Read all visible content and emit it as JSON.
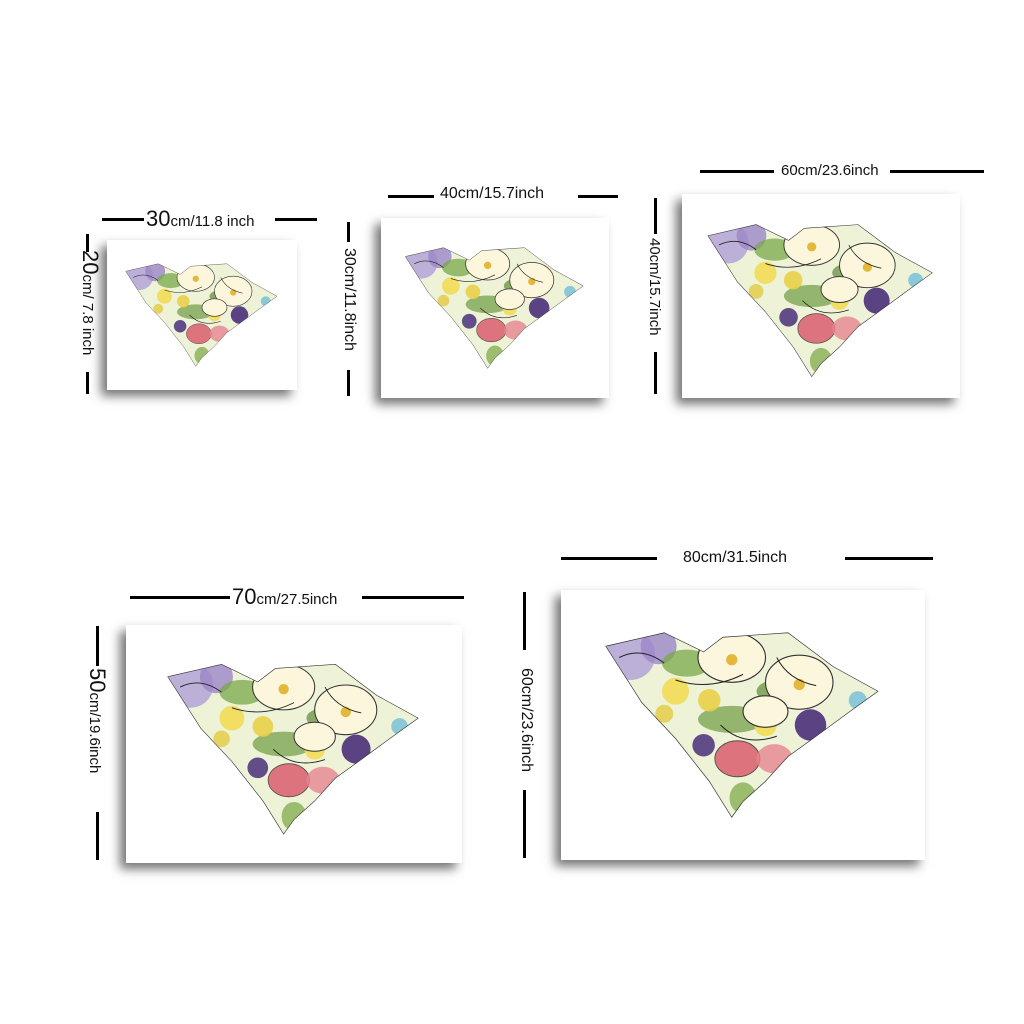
{
  "colors": {
    "purple": "#9b86c8",
    "violet": "#4a2f7a",
    "yellow": "#f4e27a",
    "cream": "#fbf6dc",
    "green": "#7aa84a",
    "darkgreen": "#3f6a2a",
    "pink": "#d95c6e",
    "blue": "#7fc3d8"
  },
  "sizes": [
    {
      "width_num": "30",
      "width_unit": "cm/11.8 inch",
      "height_num": "20",
      "height_unit": "cm/ 7.8 inch"
    },
    {
      "width_label": "40cm/15.7inch",
      "height_label": "30cm/11.8inch"
    },
    {
      "width_label": "60cm/23.6inch",
      "height_label": "40cm/15.7inch"
    },
    {
      "width_num": "70",
      "width_unit": "cm/27.5inch",
      "height_num": "50",
      "height_unit": "cm/19.6inch"
    },
    {
      "width_label": "80cm/31.5inch",
      "height_label": "60cm/23.6inch"
    }
  ]
}
